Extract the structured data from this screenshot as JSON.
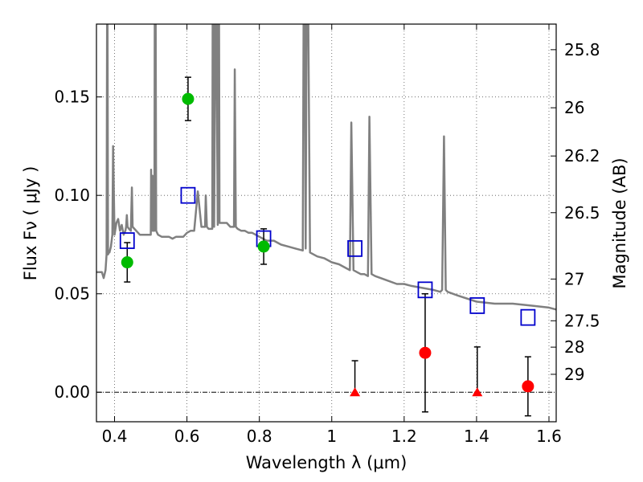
{
  "chart_data": {
    "type": "scatter",
    "title": "",
    "xlabel": "Wavelength  λ (μm)",
    "ylabel": "Flux  Fν  ( μJy )",
    "y2label": "Magnitude (AB)",
    "xlim": [
      0.35,
      1.62
    ],
    "ylim": [
      -0.015,
      0.187
    ],
    "grid": true,
    "x_ticks": [
      {
        "value": 0.4,
        "label": "0.4"
      },
      {
        "value": 0.6,
        "label": "0.6"
      },
      {
        "value": 0.8,
        "label": "0.8"
      },
      {
        "value": 1.0,
        "label": "1"
      },
      {
        "value": 1.2,
        "label": "1.2"
      },
      {
        "value": 1.4,
        "label": "1.4"
      },
      {
        "value": 1.6,
        "label": "1.6"
      }
    ],
    "y_ticks": [
      {
        "value": 0.0,
        "label": "0.00"
      },
      {
        "value": 0.05,
        "label": "0.05"
      },
      {
        "value": 0.1,
        "label": "0.10"
      },
      {
        "value": 0.15,
        "label": "0.15"
      }
    ],
    "y2_ticks": [
      {
        "flux": 0.174,
        "label": "25.8"
      },
      {
        "flux": 0.1445,
        "label": "26"
      },
      {
        "flux": 0.12,
        "label": "26.2"
      },
      {
        "flux": 0.0912,
        "label": "26.5"
      },
      {
        "flux": 0.0575,
        "label": "27"
      },
      {
        "flux": 0.0363,
        "label": "27.5"
      },
      {
        "flux": 0.0229,
        "label": "28"
      },
      {
        "flux": 0.0091,
        "label": "29"
      }
    ],
    "colors": {
      "model": "#808080",
      "model_photometry": "#0000cc",
      "detection": "#00bb00",
      "non_detection": "#ff0000",
      "errorbar": "#000000",
      "grid": "#555555"
    },
    "series": [
      {
        "kind": "model_spectrum",
        "style": "line",
        "x": [
          0.35,
          0.365,
          0.37,
          0.375,
          0.378,
          0.38,
          0.382,
          0.384,
          0.386,
          0.39,
          0.394,
          0.396,
          0.4,
          0.405,
          0.41,
          0.415,
          0.42,
          0.425,
          0.43,
          0.432,
          0.434,
          0.436,
          0.44,
          0.445,
          0.448,
          0.45,
          0.46,
          0.47,
          0.48,
          0.49,
          0.5,
          0.501,
          0.503,
          0.505,
          0.507,
          0.51,
          0.512,
          0.515,
          0.52,
          0.53,
          0.54,
          0.55,
          0.56,
          0.57,
          0.58,
          0.59,
          0.6,
          0.61,
          0.62,
          0.63,
          0.64,
          0.65,
          0.652,
          0.655,
          0.66,
          0.67,
          0.672,
          0.675,
          0.68,
          0.685,
          0.688,
          0.69,
          0.695,
          0.7,
          0.71,
          0.72,
          0.73,
          0.732,
          0.735,
          0.74,
          0.75,
          0.76,
          0.77,
          0.78,
          0.8,
          0.82,
          0.84,
          0.86,
          0.88,
          0.9,
          0.92,
          0.924,
          0.928,
          0.932,
          0.94,
          0.96,
          0.98,
          1.0,
          1.02,
          1.04,
          1.05,
          1.054,
          1.06,
          1.07,
          1.08,
          1.09,
          1.1,
          1.104,
          1.11,
          1.12,
          1.15,
          1.18,
          1.2,
          1.22,
          1.25,
          1.28,
          1.3,
          1.305,
          1.31,
          1.315,
          1.32,
          1.35,
          1.4,
          1.45,
          1.5,
          1.55,
          1.6,
          1.62
        ],
        "y": [
          0.061,
          0.061,
          0.058,
          0.062,
          0.07,
          0.24,
          0.07,
          0.071,
          0.071,
          0.074,
          0.08,
          0.125,
          0.08,
          0.086,
          0.088,
          0.082,
          0.085,
          0.08,
          0.082,
          0.084,
          0.09,
          0.084,
          0.083,
          0.082,
          0.104,
          0.084,
          0.082,
          0.08,
          0.08,
          0.08,
          0.08,
          0.113,
          0.082,
          0.11,
          0.082,
          0.082,
          0.31,
          0.082,
          0.08,
          0.079,
          0.079,
          0.079,
          0.078,
          0.079,
          0.079,
          0.079,
          0.081,
          0.082,
          0.082,
          0.102,
          0.084,
          0.084,
          0.1,
          0.084,
          0.083,
          0.083,
          0.28,
          0.084,
          0.23,
          0.085,
          0.25,
          0.086,
          0.086,
          0.086,
          0.086,
          0.084,
          0.084,
          0.164,
          0.084,
          0.083,
          0.082,
          0.082,
          0.081,
          0.081,
          0.079,
          0.077,
          0.077,
          0.075,
          0.074,
          0.073,
          0.072,
          0.28,
          0.073,
          0.27,
          0.071,
          0.069,
          0.068,
          0.066,
          0.065,
          0.063,
          0.062,
          0.137,
          0.062,
          0.061,
          0.06,
          0.06,
          0.059,
          0.14,
          0.06,
          0.059,
          0.057,
          0.055,
          0.055,
          0.054,
          0.053,
          0.052,
          0.051,
          0.052,
          0.13,
          0.052,
          0.051,
          0.049,
          0.046,
          0.045,
          0.045,
          0.044,
          0.043,
          0.042
        ]
      },
      {
        "kind": "model_photometry",
        "style": "open_square",
        "x": [
          0.435,
          0.603,
          0.812,
          1.064,
          1.258,
          1.402,
          1.542
        ],
        "y": [
          0.077,
          0.1,
          0.078,
          0.073,
          0.052,
          0.044,
          0.038
        ]
      },
      {
        "kind": "detections",
        "style": "filled_circle",
        "x": [
          0.435,
          0.603,
          0.812
        ],
        "y": [
          0.066,
          0.149,
          0.074
        ],
        "err": [
          0.01,
          0.011,
          0.009
        ]
      },
      {
        "kind": "non_detections",
        "style": "filled_circle",
        "x": [
          1.258,
          1.542
        ],
        "y": [
          0.02,
          0.003
        ],
        "err": [
          0.03,
          0.015
        ]
      },
      {
        "kind": "upper_limits",
        "style": "triangle",
        "x": [
          1.064,
          1.402
        ],
        "y": [
          0.0,
          0.0
        ],
        "err_up": [
          0.016,
          0.023
        ]
      }
    ]
  }
}
